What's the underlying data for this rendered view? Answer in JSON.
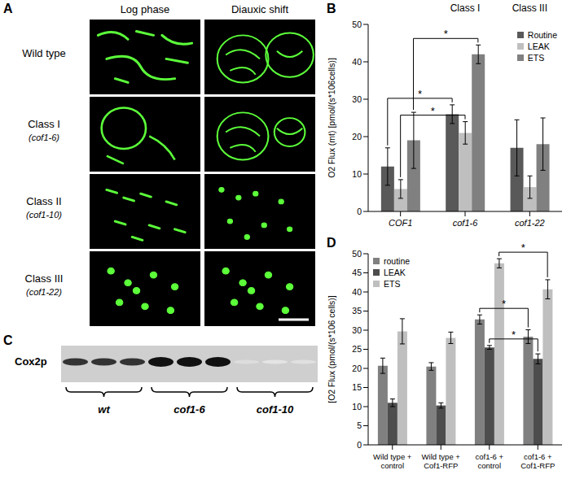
{
  "panel_labels": [
    "A",
    "B",
    "C",
    "D"
  ],
  "panel_a": {
    "columns": [
      "Log phase",
      "Diauxic shift"
    ],
    "rows": [
      {
        "label": "Wild type"
      },
      {
        "label": "Class I",
        "strain": "(cof1-6)"
      },
      {
        "label": "Class II",
        "strain": "(cof1-10)"
      },
      {
        "label": "Class III",
        "strain": "(cof1-22)"
      }
    ]
  },
  "panel_c": {
    "band_label": "Cox2p",
    "groups": [
      "wt",
      "cof1-6",
      "cof1-10"
    ]
  },
  "chart_data": [
    {
      "type": "bar",
      "y_label": "O2 Flux (mt) [pmol/(s*106cells)]",
      "categories": [
        "COF1",
        "cof1-6",
        "cof1-22"
      ],
      "category_headers": [
        null,
        "Class I",
        "Class III"
      ],
      "ylim": [
        0,
        50
      ],
      "yticks": [
        0,
        10,
        20,
        30,
        40,
        50
      ],
      "legend": "top right",
      "series": [
        {
          "name": "Routine",
          "color": "#595959",
          "values": [
            12,
            26,
            17
          ],
          "errors": [
            5,
            2.5,
            7.5
          ]
        },
        {
          "name": "LEAK",
          "color": "#bfbfbf",
          "values": [
            6,
            21,
            6.5
          ],
          "errors": [
            2.5,
            3,
            3
          ]
        },
        {
          "name": "ETS",
          "color": "#808080",
          "values": [
            19,
            42,
            18
          ],
          "errors": [
            7.5,
            2.5,
            7
          ]
        }
      ],
      "annotations": [
        {
          "text": "*",
          "from": {
            "category": "COF1",
            "series": "LEAK"
          },
          "to": {
            "category": "cof1-6",
            "series": "LEAK"
          }
        },
        {
          "text": "*",
          "from": {
            "category": "COF1",
            "series": "Routine"
          },
          "to": {
            "category": "cof1-6",
            "series": "Routine"
          }
        },
        {
          "text": "*",
          "from": {
            "category": "COF1",
            "series": "ETS"
          },
          "to": {
            "category": "cof1-6",
            "series": "ETS"
          }
        }
      ]
    },
    {
      "type": "bar",
      "y_label": "[O2 Flux (pmol/(s*106 cells)]",
      "categories": [
        "Wild type + control",
        "Wild type + Cof1-RFP",
        "cof1-6 + control",
        "cof1-6 + Cof1-RFP"
      ],
      "ylim": [
        0,
        50
      ],
      "yticks": [
        0,
        5,
        10,
        15,
        20,
        25,
        30,
        35,
        40,
        45,
        50
      ],
      "legend": "top left",
      "series": [
        {
          "name": "routine",
          "color": "#808080",
          "values": [
            20.7,
            20.5,
            32.8,
            28.3
          ],
          "errors": [
            2,
            1,
            1.2,
            1.8
          ]
        },
        {
          "name": "LEAK",
          "color": "#4d4d4d",
          "values": [
            11,
            10.3,
            25.5,
            22.5
          ],
          "errors": [
            1,
            0.7,
            0.5,
            1.3
          ]
        },
        {
          "name": "ETS",
          "color": "#bfbfbf",
          "values": [
            29.7,
            28,
            47.5,
            40.7
          ],
          "errors": [
            3.3,
            1.5,
            1.2,
            2.5
          ]
        }
      ],
      "annotations": [
        {
          "text": "*",
          "from": {
            "category": "cof1-6 + control",
            "series": "LEAK"
          },
          "to": {
            "category": "cof1-6 + Cof1-RFP",
            "series": "LEAK"
          }
        },
        {
          "text": "*",
          "from": {
            "category": "cof1-6 + control",
            "series": "routine"
          },
          "to": {
            "category": "cof1-6 + Cof1-RFP",
            "series": "routine"
          }
        },
        {
          "text": "*",
          "from": {
            "category": "cof1-6 + control",
            "series": "ETS"
          },
          "to": {
            "category": "cof1-6 + Cof1-RFP",
            "series": "ETS"
          }
        }
      ]
    }
  ]
}
